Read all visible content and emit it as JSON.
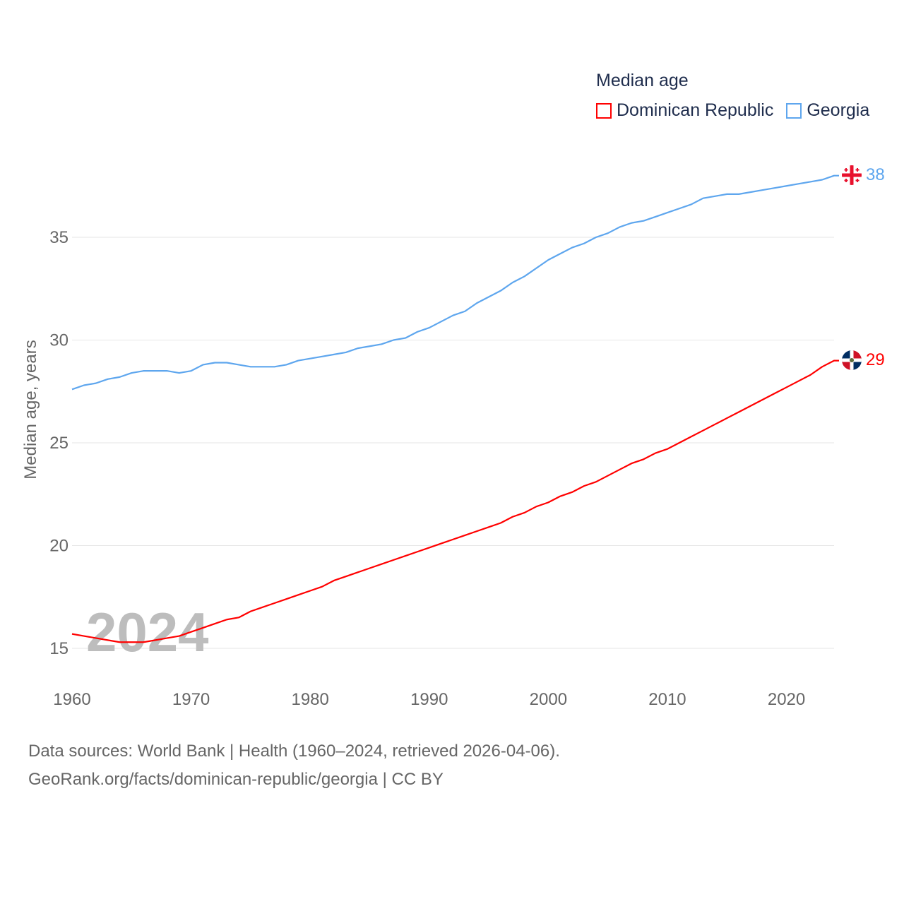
{
  "legend": {
    "title": "Median age",
    "items": [
      {
        "label": "Dominican Republic",
        "color": "#ff0000"
      },
      {
        "label": "Georgia",
        "color": "#5ea6ee"
      }
    ]
  },
  "footer": {
    "line1": "Data sources: World Bank | Health (1960–2024, retrieved 2026-04-06).",
    "line2": "GeoRank.org/facts/dominican-republic/georgia | CC BY"
  },
  "chart_data": {
    "type": "line",
    "title": "Median age",
    "ylabel": "Median age, years",
    "xlabel": "",
    "year_label": "2024",
    "xlim": [
      1960,
      2024
    ],
    "ylim": [
      15,
      38
    ],
    "x_ticks": [
      "1960",
      "1970",
      "1980",
      "1990",
      "2000",
      "2010",
      "2020"
    ],
    "y_ticks": [
      "15",
      "20",
      "25",
      "30",
      "35"
    ],
    "x": [
      1960,
      1961,
      1962,
      1963,
      1964,
      1965,
      1966,
      1967,
      1968,
      1969,
      1970,
      1971,
      1972,
      1973,
      1974,
      1975,
      1976,
      1977,
      1978,
      1979,
      1980,
      1981,
      1982,
      1983,
      1984,
      1985,
      1986,
      1987,
      1988,
      1989,
      1990,
      1991,
      1992,
      1993,
      1994,
      1995,
      1996,
      1997,
      1998,
      1999,
      2000,
      2001,
      2002,
      2003,
      2004,
      2005,
      2006,
      2007,
      2008,
      2009,
      2010,
      2011,
      2012,
      2013,
      2014,
      2015,
      2016,
      2017,
      2018,
      2019,
      2020,
      2021,
      2022,
      2023,
      2024
    ],
    "series": [
      {
        "name": "Dominican Republic",
        "color": "#ff0000",
        "end_label": "29",
        "values": [
          15.7,
          15.6,
          15.5,
          15.4,
          15.3,
          15.3,
          15.3,
          15.4,
          15.5,
          15.6,
          15.8,
          16.0,
          16.2,
          16.4,
          16.5,
          16.8,
          17.0,
          17.2,
          17.4,
          17.6,
          17.8,
          18.0,
          18.3,
          18.5,
          18.7,
          18.9,
          19.1,
          19.3,
          19.5,
          19.7,
          19.9,
          20.1,
          20.3,
          20.5,
          20.7,
          20.9,
          21.1,
          21.4,
          21.6,
          21.9,
          22.1,
          22.4,
          22.6,
          22.9,
          23.1,
          23.4,
          23.7,
          24.0,
          24.2,
          24.5,
          24.7,
          25.0,
          25.3,
          25.6,
          25.9,
          26.2,
          26.5,
          26.8,
          27.1,
          27.4,
          27.7,
          28.0,
          28.3,
          28.7,
          29.0
        ]
      },
      {
        "name": "Georgia",
        "color": "#5ea6ee",
        "end_label": "38",
        "values": [
          27.6,
          27.8,
          27.9,
          28.1,
          28.2,
          28.4,
          28.5,
          28.5,
          28.5,
          28.4,
          28.5,
          28.8,
          28.9,
          28.9,
          28.8,
          28.7,
          28.7,
          28.7,
          28.8,
          29.0,
          29.1,
          29.2,
          29.3,
          29.4,
          29.6,
          29.7,
          29.8,
          30.0,
          30.1,
          30.4,
          30.6,
          30.9,
          31.2,
          31.4,
          31.8,
          32.1,
          32.4,
          32.8,
          33.1,
          33.5,
          33.9,
          34.2,
          34.5,
          34.7,
          35.0,
          35.2,
          35.5,
          35.7,
          35.8,
          36.0,
          36.2,
          36.4,
          36.6,
          36.9,
          37.0,
          37.1,
          37.1,
          37.2,
          37.3,
          37.4,
          37.5,
          37.6,
          37.7,
          37.8,
          38.0
        ]
      }
    ],
    "grid": true,
    "legend_position": "top-right"
  }
}
